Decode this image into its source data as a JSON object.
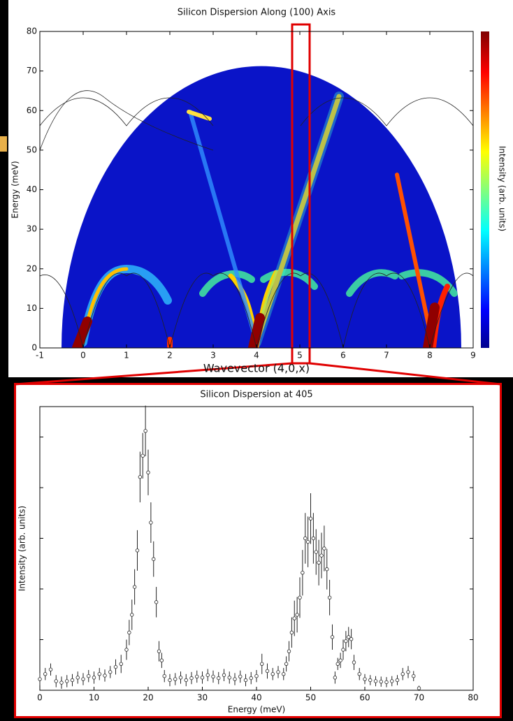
{
  "chart_data": [
    {
      "type": "heatmap",
      "title": "Silicon Dispersion Along (100) Axis",
      "x_label": "Wavevector (4,0,x)",
      "y_label": "Energy (meV)",
      "colorbar_label": "Intensity (arb. units)",
      "xlim": [
        -1,
        9
      ],
      "xticks": [
        -1,
        0,
        1,
        2,
        3,
        4,
        5,
        6,
        7,
        8,
        9
      ],
      "ylim": [
        0,
        80
      ],
      "yticks": [
        0,
        10,
        20,
        30,
        40,
        50,
        60,
        70,
        80
      ]
    },
    {
      "type": "errorbar",
      "title": "Silicon Dispersion at 405",
      "x_label": "Energy (meV)",
      "y_label": "Intensity (arb. units)",
      "xlim": [
        0,
        80
      ],
      "xticks": [
        0,
        10,
        20,
        30,
        40,
        50,
        60,
        70,
        80
      ],
      "ylim": [
        0,
        5.6
      ],
      "yticks": [
        1,
        2,
        3,
        4,
        5
      ],
      "color": "#222222",
      "x": [
        0,
        1,
        2,
        3,
        4,
        5,
        6,
        7,
        8,
        9,
        10,
        11,
        12,
        13,
        14,
        15,
        16,
        16.5,
        17,
        17.5,
        18,
        18.5,
        19,
        19.5,
        20,
        20.5,
        21,
        21.5,
        22,
        22.5,
        23,
        24,
        25,
        26,
        27,
        28,
        29,
        30,
        31,
        32,
        33,
        34,
        35,
        36,
        37,
        38,
        39,
        40,
        41,
        42,
        43,
        44,
        45,
        45.5,
        46,
        46.5,
        47,
        47.5,
        48,
        48.5,
        49,
        49.5,
        50,
        50.5,
        51,
        51.5,
        52,
        52.5,
        53,
        53.5,
        54,
        54.5,
        55,
        55.5,
        56,
        56.5,
        57,
        57.5,
        58,
        59,
        60,
        61,
        62,
        63,
        64,
        65,
        66,
        67,
        68,
        69,
        70
      ],
      "values": [
        0.22,
        0.32,
        0.41,
        0.18,
        0.15,
        0.18,
        0.2,
        0.25,
        0.22,
        0.28,
        0.25,
        0.32,
        0.29,
        0.36,
        0.46,
        0.52,
        0.8,
        1.14,
        1.49,
        2.04,
        2.76,
        4.21,
        4.63,
        5.12,
        4.3,
        3.31,
        2.59,
        1.74,
        0.77,
        0.59,
        0.28,
        0.2,
        0.22,
        0.25,
        0.2,
        0.24,
        0.27,
        0.25,
        0.3,
        0.27,
        0.24,
        0.3,
        0.25,
        0.22,
        0.27,
        0.2,
        0.24,
        0.28,
        0.52,
        0.38,
        0.32,
        0.36,
        0.32,
        0.52,
        0.77,
        1.14,
        1.42,
        1.49,
        1.83,
        2.32,
        3.0,
        2.93,
        3.39,
        3.0,
        2.73,
        2.52,
        2.66,
        2.8,
        2.39,
        1.83,
        1.05,
        0.25,
        0.52,
        0.59,
        0.8,
        0.97,
        1.05,
        1.01,
        0.55,
        0.32,
        0.22,
        0.2,
        0.18,
        0.17,
        0.16,
        0.18,
        0.2,
        0.32,
        0.36,
        0.28,
        0.04
      ],
      "errors": [
        0.12,
        0.12,
        0.12,
        0.12,
        0.12,
        0.12,
        0.12,
        0.12,
        0.12,
        0.12,
        0.12,
        0.12,
        0.12,
        0.12,
        0.15,
        0.18,
        0.2,
        0.25,
        0.3,
        0.35,
        0.4,
        0.5,
        0.45,
        0.5,
        0.45,
        0.4,
        0.35,
        0.3,
        0.2,
        0.15,
        0.12,
        0.12,
        0.12,
        0.12,
        0.12,
        0.12,
        0.12,
        0.12,
        0.12,
        0.12,
        0.12,
        0.12,
        0.12,
        0.12,
        0.12,
        0.12,
        0.12,
        0.12,
        0.2,
        0.15,
        0.12,
        0.12,
        0.12,
        0.15,
        0.2,
        0.3,
        0.35,
        0.35,
        0.4,
        0.45,
        0.5,
        0.5,
        0.5,
        0.5,
        0.45,
        0.45,
        0.45,
        0.45,
        0.4,
        0.35,
        0.25,
        0.12,
        0.12,
        0.15,
        0.2,
        0.2,
        0.2,
        0.2,
        0.15,
        0.12,
        0.1,
        0.1,
        0.1,
        0.1,
        0.1,
        0.1,
        0.1,
        0.12,
        0.12,
        0.1,
        0.05
      ]
    }
  ]
}
